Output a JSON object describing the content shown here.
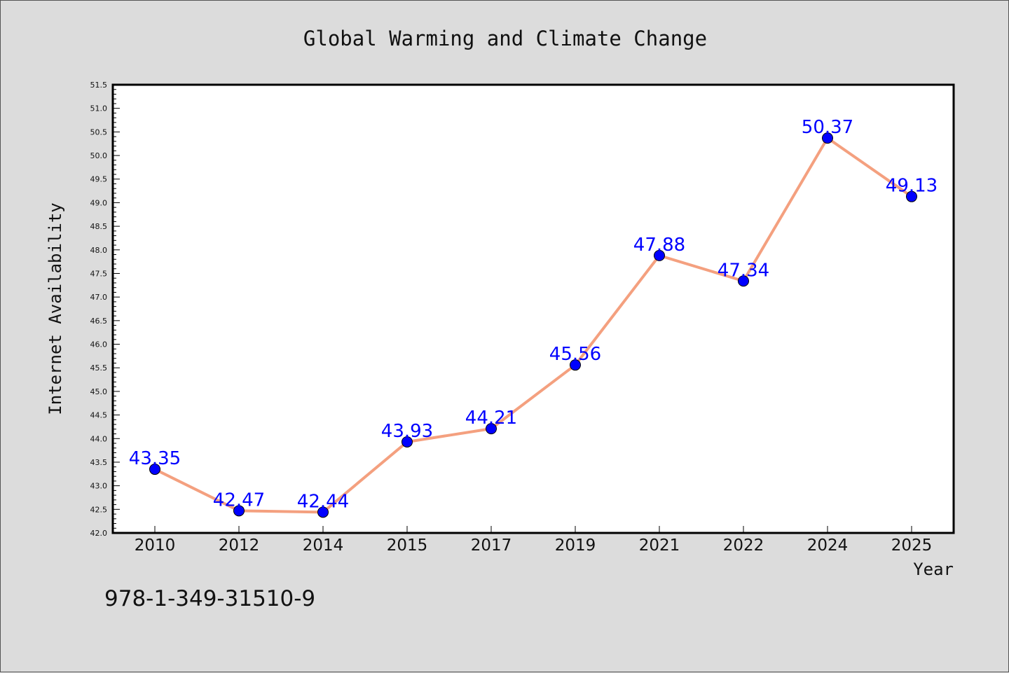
{
  "chart_data": {
    "type": "line",
    "title": "Global Warming and Climate Change",
    "xlabel": "Year",
    "ylabel": "Internet Availability",
    "categories": [
      "2010",
      "2012",
      "2014",
      "2015",
      "2017",
      "2019",
      "2021",
      "2022",
      "2024",
      "2025"
    ],
    "values": [
      43.35,
      42.47,
      42.44,
      43.93,
      44.21,
      45.56,
      47.88,
      47.34,
      50.37,
      49.13
    ],
    "data_labels": [
      "43.35",
      "42.47",
      "42.44",
      "43.93",
      "44.21",
      "45.56",
      "47.88",
      "47.34",
      "50.37",
      "49.13"
    ],
    "ylim": [
      42.0,
      51.5
    ],
    "y_tick_step": 0.5,
    "grid": false,
    "legend": "none",
    "line_color": "#f4a07f",
    "marker_color": "#0000ff",
    "label_color": "#0000ff",
    "background_color": "#dcdcdc",
    "plot_background_color": "#ffffff"
  },
  "footer": {
    "text": "978-1-349-31510-9"
  }
}
